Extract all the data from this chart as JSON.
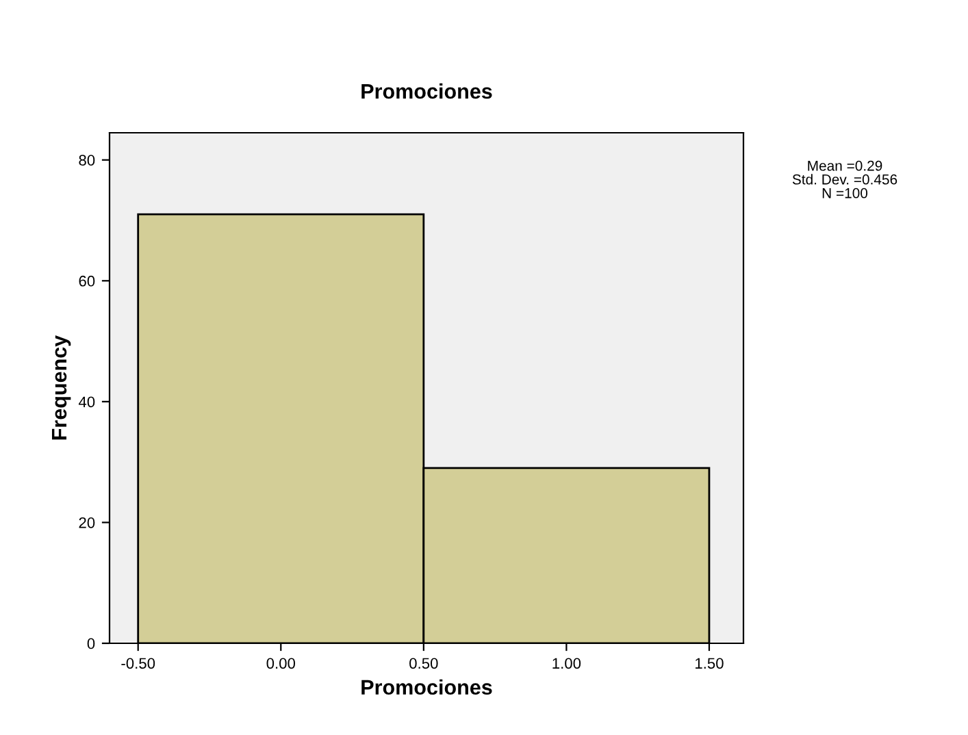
{
  "chart_data": {
    "type": "histogram",
    "title": "Promociones",
    "xlabel": "Promociones",
    "ylabel": "Frequency",
    "bins": [
      -0.5,
      0.5,
      1.5
    ],
    "values": [
      71,
      29
    ],
    "color": "#d3ce97",
    "xlim": [
      -0.6,
      1.62
    ],
    "ylim": [
      0,
      84.5
    ],
    "xticks": [
      {
        "value": -0.5,
        "label": "-0.50"
      },
      {
        "value": 0,
        "label": "0.00"
      },
      {
        "value": 0.5,
        "label": "0.50"
      },
      {
        "value": 1,
        "label": "1.00"
      },
      {
        "value": 1.5,
        "label": "1.50"
      }
    ],
    "yticks": [
      0,
      20,
      40,
      60,
      80
    ],
    "annotations": [
      "Mean =0.29",
      "Std. Dev. =0.456",
      "N =100"
    ],
    "grid": false
  }
}
